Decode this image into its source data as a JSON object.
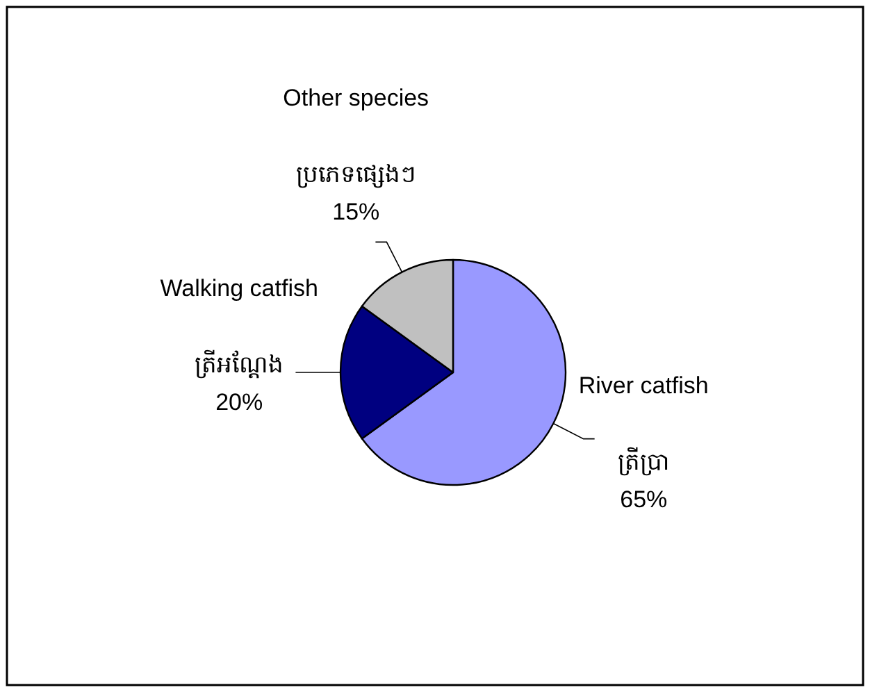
{
  "chart_data": {
    "type": "pie",
    "categories": [
      "River catfish\nត្រីប្រា",
      "Walking catfish\nត្រីអណ្តែង",
      "Other species\nប្រភេទផ្សេងៗ"
    ],
    "values": [
      65,
      20,
      15
    ],
    "colors": [
      "#9999ff",
      "#000080",
      "#c0c0c0"
    ],
    "value_labels": [
      "65%",
      "20%",
      "15%"
    ]
  }
}
